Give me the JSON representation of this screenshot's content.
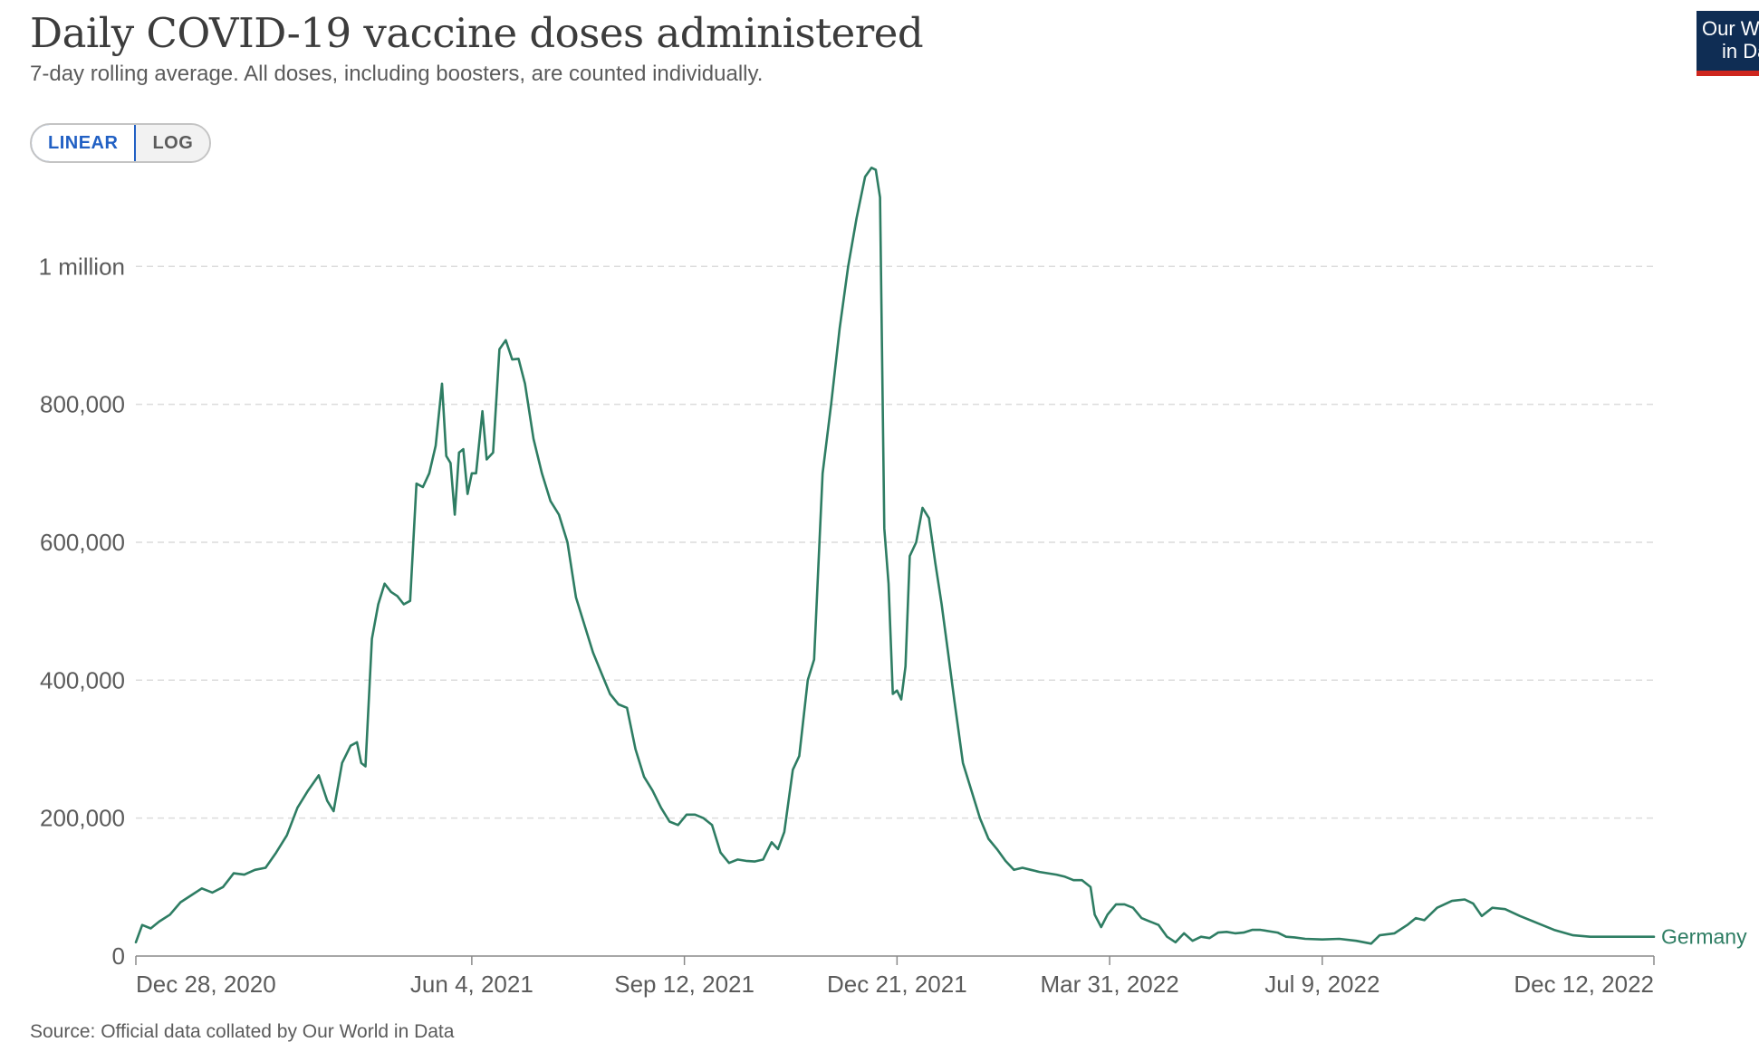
{
  "header": {
    "title": "Daily COVID-19 vaccine doses administered",
    "subtitle": "7-day rolling average. All doses, including boosters, are counted individually."
  },
  "controls": {
    "linear_label": "LINEAR",
    "log_label": "LOG",
    "active": "linear"
  },
  "logo": {
    "line1": "Our W",
    "line2": "in Da"
  },
  "footer": {
    "source": "Source: Official data collated by Our World in Data"
  },
  "colors": {
    "series": "#2e7d63",
    "grid": "#dcdcdc",
    "axis": "#8a8a8a",
    "accent": "#2160c4",
    "logo_bg": "#0f2d54",
    "logo_bar": "#ce261e"
  },
  "chart_data": {
    "type": "line",
    "title": "Daily COVID-19 vaccine doses administered",
    "subtitle": "7-day rolling average. All doses, including boosters, are counted individually.",
    "xlabel": "",
    "ylabel": "",
    "xlim": [
      "2020-12-28",
      "2022-12-12"
    ],
    "ylim": [
      0,
      1150000
    ],
    "grid": "horizontal dashed",
    "x_ticks": [
      {
        "date": "2020-12-28",
        "label": "Dec 28, 2020"
      },
      {
        "date": "2021-06-04",
        "label": "Jun 4, 2021"
      },
      {
        "date": "2021-09-12",
        "label": "Sep 12, 2021"
      },
      {
        "date": "2021-12-21",
        "label": "Dec 21, 2021"
      },
      {
        "date": "2022-03-31",
        "label": "Mar 31, 2022"
      },
      {
        "date": "2022-07-09",
        "label": "Jul 9, 2022"
      },
      {
        "date": "2022-12-12",
        "label": "Dec 12, 2022"
      }
    ],
    "y_ticks": [
      {
        "value": 0,
        "label": "0"
      },
      {
        "value": 200000,
        "label": "200,000"
      },
      {
        "value": 400000,
        "label": "400,000"
      },
      {
        "value": 600000,
        "label": "600,000"
      },
      {
        "value": 800000,
        "label": "800,000"
      },
      {
        "value": 1000000,
        "label": "1 million"
      }
    ],
    "series": [
      {
        "name": "Germany",
        "points": [
          [
            "2020-12-28",
            20000
          ],
          [
            "2020-12-31",
            45000
          ],
          [
            "2021-01-04",
            40000
          ],
          [
            "2021-01-08",
            50000
          ],
          [
            "2021-01-13",
            60000
          ],
          [
            "2021-01-18",
            78000
          ],
          [
            "2021-01-23",
            88000
          ],
          [
            "2021-01-28",
            98000
          ],
          [
            "2021-02-02",
            92000
          ],
          [
            "2021-02-07",
            100000
          ],
          [
            "2021-02-12",
            120000
          ],
          [
            "2021-02-17",
            118000
          ],
          [
            "2021-02-22",
            125000
          ],
          [
            "2021-02-27",
            128000
          ],
          [
            "2021-03-04",
            150000
          ],
          [
            "2021-03-09",
            175000
          ],
          [
            "2021-03-14",
            215000
          ],
          [
            "2021-03-19",
            240000
          ],
          [
            "2021-03-24",
            262000
          ],
          [
            "2021-03-28",
            225000
          ],
          [
            "2021-03-31",
            210000
          ],
          [
            "2021-04-04",
            280000
          ],
          [
            "2021-04-08",
            305000
          ],
          [
            "2021-04-11",
            310000
          ],
          [
            "2021-04-13",
            280000
          ],
          [
            "2021-04-15",
            275000
          ],
          [
            "2021-04-18",
            460000
          ],
          [
            "2021-04-21",
            510000
          ],
          [
            "2021-04-24",
            540000
          ],
          [
            "2021-04-27",
            528000
          ],
          [
            "2021-04-30",
            522000
          ],
          [
            "2021-05-03",
            510000
          ],
          [
            "2021-05-06",
            515000
          ],
          [
            "2021-05-09",
            685000
          ],
          [
            "2021-05-12",
            680000
          ],
          [
            "2021-05-15",
            700000
          ],
          [
            "2021-05-18",
            740000
          ],
          [
            "2021-05-21",
            830000
          ],
          [
            "2021-05-23",
            725000
          ],
          [
            "2021-05-25",
            715000
          ],
          [
            "2021-05-27",
            640000
          ],
          [
            "2021-05-29",
            730000
          ],
          [
            "2021-05-31",
            735000
          ],
          [
            "2021-06-02",
            670000
          ],
          [
            "2021-06-04",
            700000
          ],
          [
            "2021-06-06",
            700000
          ],
          [
            "2021-06-09",
            790000
          ],
          [
            "2021-06-11",
            720000
          ],
          [
            "2021-06-14",
            730000
          ],
          [
            "2021-06-17",
            880000
          ],
          [
            "2021-06-20",
            893000
          ],
          [
            "2021-06-23",
            865000
          ],
          [
            "2021-06-26",
            866000
          ],
          [
            "2021-06-29",
            830000
          ],
          [
            "2021-07-03",
            750000
          ],
          [
            "2021-07-07",
            700000
          ],
          [
            "2021-07-11",
            660000
          ],
          [
            "2021-07-15",
            640000
          ],
          [
            "2021-07-19",
            600000
          ],
          [
            "2021-07-23",
            520000
          ],
          [
            "2021-07-27",
            480000
          ],
          [
            "2021-07-31",
            440000
          ],
          [
            "2021-08-04",
            410000
          ],
          [
            "2021-08-08",
            380000
          ],
          [
            "2021-08-12",
            365000
          ],
          [
            "2021-08-16",
            360000
          ],
          [
            "2021-08-20",
            300000
          ],
          [
            "2021-08-24",
            260000
          ],
          [
            "2021-08-28",
            240000
          ],
          [
            "2021-09-01",
            215000
          ],
          [
            "2021-09-05",
            195000
          ],
          [
            "2021-09-09",
            190000
          ],
          [
            "2021-09-13",
            205000
          ],
          [
            "2021-09-17",
            205000
          ],
          [
            "2021-09-21",
            200000
          ],
          [
            "2021-09-25",
            190000
          ],
          [
            "2021-09-29",
            150000
          ],
          [
            "2021-10-03",
            135000
          ],
          [
            "2021-10-07",
            140000
          ],
          [
            "2021-10-11",
            138000
          ],
          [
            "2021-10-15",
            137000
          ],
          [
            "2021-10-19",
            140000
          ],
          [
            "2021-10-23",
            165000
          ],
          [
            "2021-10-26",
            155000
          ],
          [
            "2021-10-29",
            180000
          ],
          [
            "2021-11-02",
            270000
          ],
          [
            "2021-11-05",
            290000
          ],
          [
            "2021-11-09",
            400000
          ],
          [
            "2021-11-12",
            430000
          ],
          [
            "2021-11-16",
            700000
          ],
          [
            "2021-11-20",
            800000
          ],
          [
            "2021-11-24",
            910000
          ],
          [
            "2021-11-28",
            1000000
          ],
          [
            "2021-12-02",
            1070000
          ],
          [
            "2021-12-06",
            1130000
          ],
          [
            "2021-12-09",
            1143000
          ],
          [
            "2021-12-11",
            1140000
          ],
          [
            "2021-12-13",
            1100000
          ],
          [
            "2021-12-15",
            620000
          ],
          [
            "2021-12-17",
            540000
          ],
          [
            "2021-12-19",
            380000
          ],
          [
            "2021-12-21",
            385000
          ],
          [
            "2021-12-23",
            372000
          ],
          [
            "2021-12-25",
            420000
          ],
          [
            "2021-12-27",
            580000
          ],
          [
            "2021-12-30",
            600000
          ],
          [
            "2022-01-02",
            650000
          ],
          [
            "2022-01-05",
            635000
          ],
          [
            "2022-01-08",
            570000
          ],
          [
            "2022-01-11",
            510000
          ],
          [
            "2022-01-14",
            440000
          ],
          [
            "2022-01-17",
            370000
          ],
          [
            "2022-01-21",
            280000
          ],
          [
            "2022-01-25",
            240000
          ],
          [
            "2022-01-29",
            200000
          ],
          [
            "2022-02-02",
            170000
          ],
          [
            "2022-02-06",
            155000
          ],
          [
            "2022-02-10",
            138000
          ],
          [
            "2022-02-14",
            125000
          ],
          [
            "2022-02-18",
            128000
          ],
          [
            "2022-02-22",
            125000
          ],
          [
            "2022-02-26",
            122000
          ],
          [
            "2022-03-02",
            120000
          ],
          [
            "2022-03-06",
            118000
          ],
          [
            "2022-03-10",
            115000
          ],
          [
            "2022-03-14",
            110000
          ],
          [
            "2022-03-18",
            110000
          ],
          [
            "2022-03-22",
            100000
          ],
          [
            "2022-03-24",
            60000
          ],
          [
            "2022-03-27",
            42000
          ],
          [
            "2022-03-30",
            60000
          ],
          [
            "2022-04-03",
            75000
          ],
          [
            "2022-04-07",
            75000
          ],
          [
            "2022-04-11",
            70000
          ],
          [
            "2022-04-15",
            55000
          ],
          [
            "2022-04-19",
            50000
          ],
          [
            "2022-04-23",
            45000
          ],
          [
            "2022-04-27",
            28000
          ],
          [
            "2022-05-01",
            20000
          ],
          [
            "2022-05-05",
            33000
          ],
          [
            "2022-05-09",
            22000
          ],
          [
            "2022-05-13",
            28000
          ],
          [
            "2022-05-17",
            26000
          ],
          [
            "2022-05-21",
            34000
          ],
          [
            "2022-05-25",
            35000
          ],
          [
            "2022-05-29",
            33000
          ],
          [
            "2022-06-02",
            34000
          ],
          [
            "2022-06-06",
            38000
          ],
          [
            "2022-06-10",
            38000
          ],
          [
            "2022-06-14",
            36000
          ],
          [
            "2022-06-18",
            34000
          ],
          [
            "2022-06-22",
            28000
          ],
          [
            "2022-06-26",
            27000
          ],
          [
            "2022-07-01",
            25000
          ],
          [
            "2022-07-09",
            24000
          ],
          [
            "2022-07-17",
            25000
          ],
          [
            "2022-07-25",
            22000
          ],
          [
            "2022-08-01",
            18000
          ],
          [
            "2022-08-05",
            30000
          ],
          [
            "2022-08-12",
            33000
          ],
          [
            "2022-08-18",
            45000
          ],
          [
            "2022-08-22",
            55000
          ],
          [
            "2022-08-26",
            52000
          ],
          [
            "2022-09-01",
            70000
          ],
          [
            "2022-09-08",
            80000
          ],
          [
            "2022-09-14",
            82000
          ],
          [
            "2022-09-18",
            76000
          ],
          [
            "2022-09-22",
            58000
          ],
          [
            "2022-09-27",
            70000
          ],
          [
            "2022-10-03",
            68000
          ],
          [
            "2022-10-10",
            58000
          ],
          [
            "2022-10-18",
            48000
          ],
          [
            "2022-10-26",
            38000
          ],
          [
            "2022-11-04",
            30000
          ],
          [
            "2022-11-12",
            28000
          ],
          [
            "2022-12-12",
            28000
          ]
        ]
      }
    ]
  }
}
